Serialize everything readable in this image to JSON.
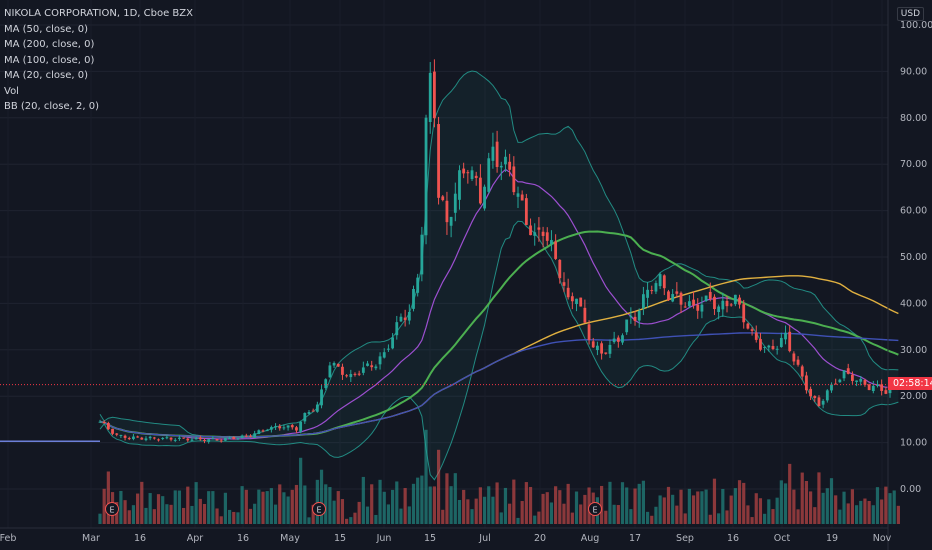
{
  "legend": {
    "symbol": "NIKOLA CORPORATION, 1D, Cboe BZX",
    "indicators": [
      "MA (50, close, 0)",
      "MA (200, close, 0)",
      "MA (100, close, 0)",
      "MA (20, close, 0)",
      "Vol",
      "BB (20, close, 2, 0)"
    ]
  },
  "currency": "USD",
  "current_price_label": "02:58:14",
  "event_marker": "E",
  "colors": {
    "up": "#26a69a",
    "down": "#ef5350",
    "ma50": "#4caf50",
    "ma200": "#3f51b5",
    "ma100": "#e0b040",
    "ma20": "#9c4fd0",
    "bb": "#26a69a",
    "bb_fill": "rgba(38,166,154,0.07)"
  },
  "chart_data": {
    "type": "candlestick",
    "y_ticks": [
      "100.00",
      "90.00",
      "80.00",
      "70.00",
      "60.00",
      "50.00",
      "40.00",
      "30.00",
      "20.00",
      "10.00",
      "0.00"
    ],
    "x_ticks": [
      "Feb",
      "Mar",
      "16",
      "Apr",
      "16",
      "May",
      "15",
      "Jun",
      "15",
      "Jul",
      "20",
      "Aug",
      "17",
      "Sep",
      "16",
      "Oct",
      "19",
      "Nov"
    ],
    "ylim": [
      -7,
      102
    ],
    "current_price": 22.5,
    "earnings_markers": [
      "Mar 9",
      "May 11",
      "Aug 5"
    ],
    "key_prices": {
      "peak": 93.99,
      "low": 10.3
    },
    "ma_period_note": ""
  }
}
